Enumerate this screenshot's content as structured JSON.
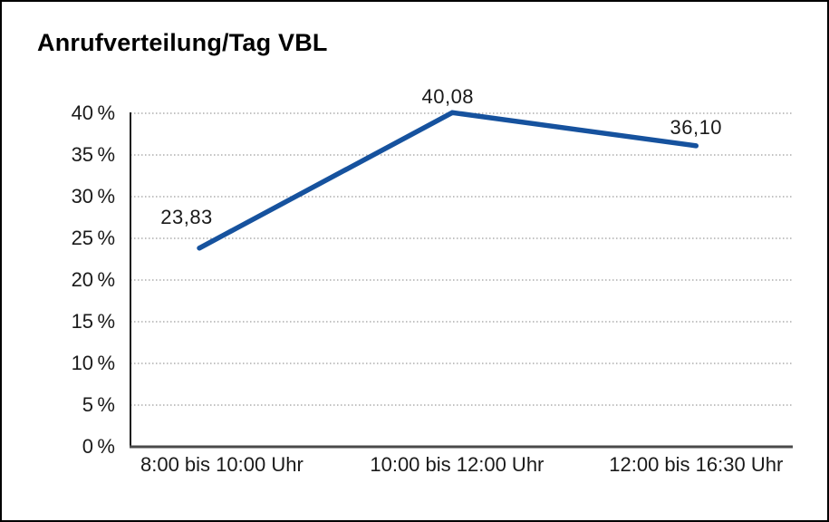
{
  "window": {
    "border_color": "#000000",
    "background": "#ffffff"
  },
  "chart_data": {
    "type": "line",
    "title": "Anrufverteilung/Tag VBL",
    "categories": [
      "8:00 bis 10:00 Uhr",
      "10:00 bis 12:00 Uhr",
      "12:00 bis 16:30 Uhr"
    ],
    "values": [
      23.83,
      40.08,
      36.1
    ],
    "value_labels": [
      "23,83",
      "40,08",
      "36,10"
    ],
    "y_ticks": [
      0,
      5,
      10,
      15,
      20,
      25,
      30,
      35,
      40
    ],
    "y_tick_labels": [
      "0 %",
      "5 %",
      "10 %",
      "15 %",
      "20 %",
      "25 %",
      "30 %",
      "35 %",
      "40 %"
    ],
    "ylim": [
      0,
      40
    ],
    "xlabel": "",
    "ylabel": "",
    "legend": "none",
    "grid": "horizontal-dotted",
    "colors": {
      "line": "#16529E",
      "gridline": "#848484",
      "y_axis": "#1a1a1a",
      "x_axis": "#4a4a4a",
      "text": "#1a1a1a"
    }
  }
}
